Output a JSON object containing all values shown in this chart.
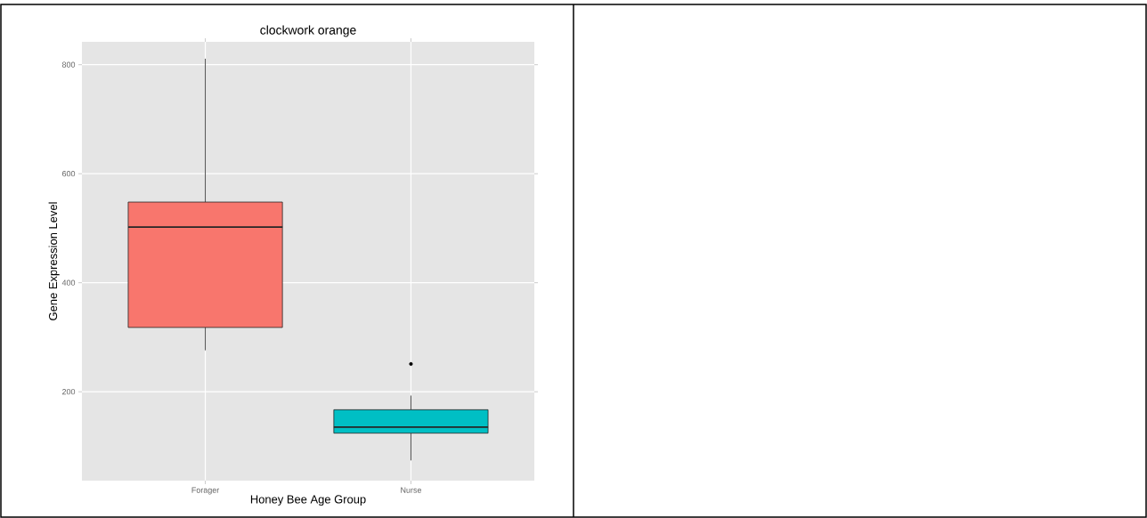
{
  "chart_data": {
    "type": "box",
    "title": "clockwork orange",
    "xlabel": "Honey Bee Age Group",
    "ylabel": "Gene Expression Level",
    "categories": [
      "Forager",
      "Nurse"
    ],
    "colors": [
      "#f8766d",
      "#00bfc4"
    ],
    "boxes": [
      {
        "low": 276,
        "q1": 318,
        "median": 502,
        "q3": 548,
        "high": 811
      },
      {
        "low": 74,
        "q1": 124,
        "median": 135,
        "q3": 167,
        "high": 193,
        "outliers": [
          251
        ]
      }
    ],
    "ylim": [
      37,
      842
    ],
    "yticks": [
      200,
      400,
      600,
      800
    ],
    "grid": true
  }
}
